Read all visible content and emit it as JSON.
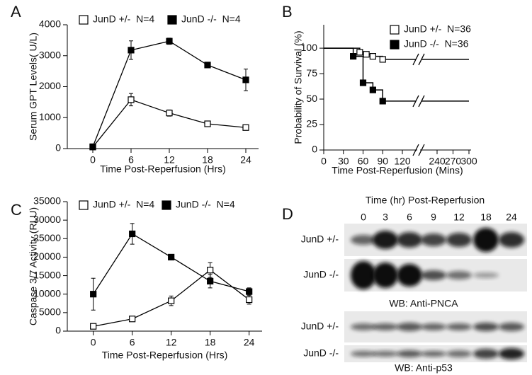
{
  "chart_data": [
    {
      "type": "line",
      "label": "A",
      "ylabel": "Serum GPT Levels( U/L)",
      "xlabel": "Time Post-Reperfusion (Hrs)",
      "x": [
        0,
        6,
        12,
        18,
        24
      ],
      "xlim": [
        -4,
        26
      ],
      "xticks": [
        0,
        6,
        12,
        18,
        24
      ],
      "ylim": [
        0,
        4000
      ],
      "yticks": [
        0,
        1000,
        2000,
        3000,
        4000
      ],
      "series": [
        {
          "name": "JunD +/-  N=4",
          "color": "#000000",
          "marker_fill": "#ffffff",
          "values": [
            50,
            1580,
            1150,
            800,
            680
          ],
          "errors": [
            20,
            200,
            100,
            40,
            50
          ]
        },
        {
          "name": "JunD -/-  N=4",
          "color": "#000000",
          "marker_fill": "#000000",
          "values": [
            60,
            3180,
            3470,
            2700,
            2220
          ],
          "errors": [
            20,
            300,
            100,
            60,
            350
          ]
        }
      ]
    },
    {
      "type": "step",
      "label": "B",
      "ylabel": "Probability of Survival (%)",
      "xlabel": "Time Post-Reperfusion (Mins)",
      "xlim": [
        0,
        300
      ],
      "xticks": [
        0,
        30,
        60,
        90,
        120,
        240,
        270,
        300
      ],
      "axis_break": true,
      "ylim": [
        0,
        123
      ],
      "yticks": [
        0,
        25,
        50,
        75,
        100
      ],
      "series": [
        {
          "name": "JunD +/-  N=36",
          "color": "#000000",
          "marker_fill": "#ffffff",
          "x": [
            0,
            55,
            65,
            75,
            90
          ],
          "values": [
            100,
            96,
            94,
            92,
            89
          ]
        },
        {
          "name": "JunD -/-  N=36",
          "color": "#000000",
          "marker_fill": "#000000",
          "x": [
            0,
            45,
            60,
            75,
            90
          ],
          "values": [
            100,
            92,
            66,
            59,
            48
          ]
        }
      ]
    },
    {
      "type": "line",
      "label": "C",
      "ylabel": "Caspase 3/7 Activity (RLU)",
      "xlabel": "Time Post-Reperfusion (Hrs)",
      "x": [
        0,
        6,
        12,
        18,
        24
      ],
      "xlim": [
        -4,
        26
      ],
      "xticks": [
        0,
        6,
        12,
        18,
        24
      ],
      "ylim": [
        0,
        35000
      ],
      "yticks": [
        0,
        5000,
        10000,
        15000,
        20000,
        25000,
        30000,
        35000
      ],
      "series": [
        {
          "name": "JunD +/-  N=4",
          "color": "#000000",
          "marker_fill": "#ffffff",
          "values": [
            1300,
            3300,
            8200,
            16500,
            8500
          ],
          "errors": [
            200,
            300,
            1300,
            2000,
            1200
          ]
        },
        {
          "name": "JunD -/-  N=4",
          "color": "#000000",
          "marker_fill": "#000000",
          "values": [
            10000,
            26300,
            20000,
            13500,
            10700
          ],
          "errors": [
            4300,
            2800,
            700,
            1800,
            1000
          ]
        }
      ]
    }
  ],
  "western_blot": {
    "label": "D",
    "title": "Time (hr) Post-Reperfusion",
    "lanes": [
      "0",
      "3",
      "6",
      "9",
      "12",
      "18",
      "24"
    ],
    "rows": [
      "JunD +/-",
      "JunD -/-",
      "JunD +/-",
      "JunD -/-"
    ],
    "blots": [
      "WB: Anti-PNCA",
      "WB: Anti-p53"
    ]
  }
}
